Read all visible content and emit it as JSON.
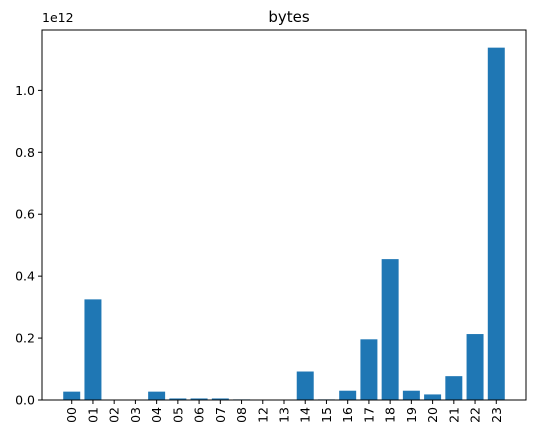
{
  "chart_data": {
    "type": "bar",
    "title": "bytes",
    "xlabel": "",
    "ylabel": "",
    "offset_text": "1e12",
    "bar_color": "#1f77b4",
    "grid": false,
    "categories": [
      "00",
      "01",
      "02",
      "03",
      "04",
      "05",
      "06",
      "07",
      "08",
      "12",
      "13",
      "14",
      "15",
      "16",
      "17",
      "18",
      "19",
      "20",
      "21",
      "22",
      "23"
    ],
    "values": [
      0.027,
      0.325,
      0.0,
      0.0,
      0.027,
      0.005,
      0.005,
      0.005,
      0.002,
      0.0,
      0.0,
      0.092,
      0.002,
      0.03,
      0.196,
      0.455,
      0.03,
      0.018,
      0.077,
      0.213,
      1.138
    ],
    "value_scale": 1000000000000.0,
    "ylim": [
      0,
      1.195
    ],
    "yticks": [
      0.0,
      0.2,
      0.4,
      0.6,
      0.8,
      1.0
    ],
    "ytick_labels": [
      "0.0",
      "0.2",
      "0.4",
      "0.6",
      "0.8",
      "1.0"
    ]
  }
}
